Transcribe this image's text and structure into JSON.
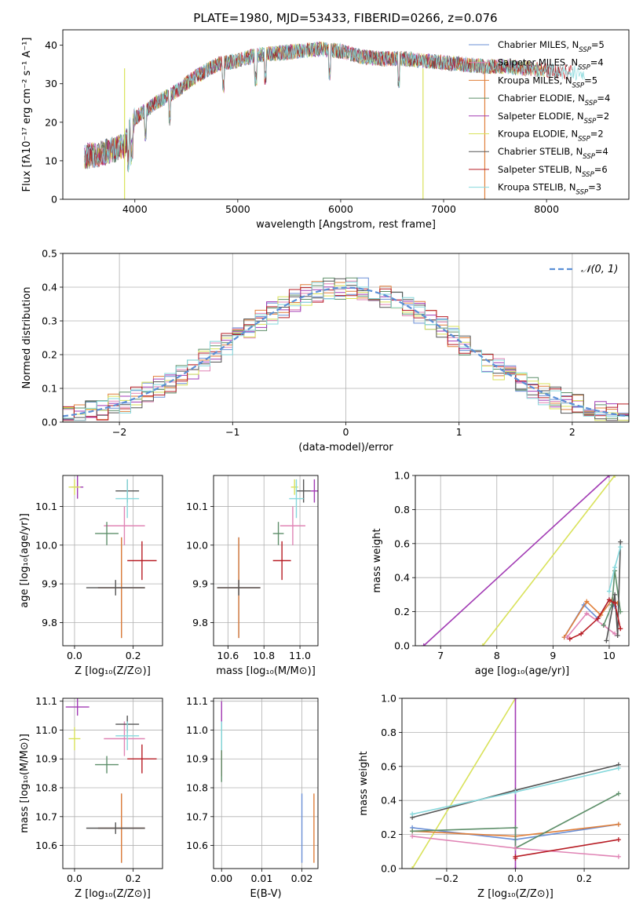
{
  "figure_title": "PLATE=1980, MJD=53433, FIBERID=0266, z=0.076",
  "colors": {
    "c0": "#6a8fd6",
    "c1": "#e07f3a",
    "c2": "#5e8f6a",
    "c3": "#a23bb4",
    "c4": "#d9e25a",
    "c5": "#555555",
    "c6": "#b71c24",
    "c7": "#86d8dc",
    "c8": "#e084b5",
    "normal": "#5b8fd6"
  },
  "chart_data": [
    {
      "id": "spectrum",
      "type": "line",
      "title": "PLATE=1980, MJD=53433, FIBERID=0266, z=0.076",
      "xlabel": "wavelength [Angstrom, rest frame]",
      "ylabel": "Flux [fλ10⁻¹⁷ erg cm⁻² s⁻¹ A⁻¹]",
      "xlim": [
        3300,
        8800
      ],
      "ylim": [
        0,
        44
      ],
      "xticks": [
        "4000",
        "5000",
        "6000",
        "7000",
        "8000"
      ],
      "yticks": [
        "0",
        "10",
        "20",
        "30",
        "40"
      ],
      "legend_position": "top-right",
      "continuum": {
        "x": [
          3500,
          3700,
          3900,
          4000,
          4200,
          4400,
          4600,
          4800,
          5000,
          5200,
          5400,
          5600,
          5800,
          6000,
          6200,
          6400,
          6600,
          6800,
          7000,
          7200,
          7400,
          7600,
          7800,
          8000,
          8200,
          8400
        ],
        "y": [
          11,
          12,
          14,
          21,
          25,
          28,
          32,
          35,
          36,
          37.5,
          38,
          38.5,
          39,
          38.5,
          37,
          36.5,
          36.5,
          36,
          35.5,
          35,
          34.5,
          34.5,
          34,
          33.5,
          33,
          32.5
        ]
      },
      "series": [
        {
          "name": "Chabrier MILES, N_SSP=5",
          "label_main": "Chabrier MILES, N",
          "label_sub": "SSP",
          "label_end": "=5",
          "color": "c0"
        },
        {
          "name": "Salpeter MILES, N_SSP=4",
          "label_main": "Salpeter MILES, N",
          "label_sub": "SSP",
          "label_end": "=4",
          "color": "c8"
        },
        {
          "name": "Kroupa MILES, N_SSP=5",
          "label_main": "Kroupa MILES, N",
          "label_sub": "SSP",
          "label_end": "=5",
          "color": "c1"
        },
        {
          "name": "Chabrier ELODIE, N_SSP=4",
          "label_main": "Chabrier ELODIE, N",
          "label_sub": "SSP",
          "label_end": "=4",
          "color": "c2"
        },
        {
          "name": "Salpeter ELODIE, N_SSP=2",
          "label_main": "Salpeter ELODIE, N",
          "label_sub": "SSP",
          "label_end": "=2",
          "color": "c3"
        },
        {
          "name": "Kroupa ELODIE, N_SSP=2",
          "label_main": "Kroupa ELODIE, N",
          "label_sub": "SSP",
          "label_end": "=2",
          "color": "c4"
        },
        {
          "name": "Chabrier STELIB, N_SSP=4",
          "label_main": "Chabrier STELIB, N",
          "label_sub": "SSP",
          "label_end": "=4",
          "color": "c5"
        },
        {
          "name": "Salpeter STELIB, N_SSP=6",
          "label_main": "Salpeter STELIB, N",
          "label_sub": "SSP",
          "label_end": "=6",
          "color": "c6"
        },
        {
          "name": "Kroupa STELIB, N_SSP=3",
          "label_main": "Kroupa STELIB, N",
          "label_sub": "SSP",
          "label_end": "=3",
          "color": "c7"
        }
      ],
      "vertical_drops": [
        {
          "x": 3900,
          "color": "c4"
        },
        {
          "x": 6800,
          "color": "c4"
        },
        {
          "x": 7400,
          "color": "c1"
        }
      ]
    },
    {
      "id": "residuals",
      "type": "histogram",
      "xlabel": "(data-model)/error",
      "ylabel": "Normed distribution",
      "xlim": [
        -2.5,
        2.5
      ],
      "ylim": [
        0,
        0.5
      ],
      "xticks": [
        "−2",
        "−1",
        "0",
        "1",
        "2"
      ],
      "yticks": [
        "0.0",
        "0.1",
        "0.2",
        "0.3",
        "0.4",
        "0.5"
      ],
      "bin_width": 0.1,
      "legend_position": "top-right",
      "legend_label": "𝒩(0, 1)",
      "normal_mean": 0,
      "normal_sigma": 1
    },
    {
      "id": "age_vs_Z",
      "type": "scatter",
      "xlabel": "Z [log₁₀(Z/Z⊙)]",
      "ylabel": "age  [log₁₀(age/yr)]",
      "xlim": [
        -0.04,
        0.3
      ],
      "ylim": [
        9.74,
        10.18
      ],
      "xticks": [
        "0.0",
        "0.2"
      ],
      "yticks": [
        "9.8",
        "9.9",
        "10.0",
        "10.1"
      ],
      "points": [
        {
          "x": 0.16,
          "y": 9.89,
          "xerr": 0.08,
          "yerr": 0.13,
          "color": "c0"
        },
        {
          "x": 0.16,
          "y": 9.89,
          "xerr": 0.08,
          "yerr": 0.13,
          "color": "c1"
        },
        {
          "x": 0.14,
          "y": 9.89,
          "xerr": 0.1,
          "yerr": 0.02,
          "color": "c5"
        },
        {
          "x": 0.17,
          "y": 10.05,
          "xerr": 0.07,
          "yerr": 0.05,
          "color": "c8"
        },
        {
          "x": 0.11,
          "y": 10.03,
          "xerr": 0.04,
          "yerr": 0.03,
          "color": "c2"
        },
        {
          "x": 0.01,
          "y": 10.15,
          "xerr": 0.02,
          "yerr": 0.03,
          "color": "c3"
        },
        {
          "x": 0.0,
          "y": 10.15,
          "xerr": 0.02,
          "yerr": 0.02,
          "color": "c4"
        },
        {
          "x": 0.18,
          "y": 10.14,
          "xerr": 0.04,
          "yerr": 0.03,
          "color": "c5"
        },
        {
          "x": 0.23,
          "y": 9.96,
          "xerr": 0.05,
          "yerr": 0.05,
          "color": "c6"
        },
        {
          "x": 0.18,
          "y": 10.12,
          "xerr": 0.04,
          "yerr": 0.05,
          "color": "c7"
        }
      ]
    },
    {
      "id": "age_vs_mass",
      "type": "scatter",
      "xlabel": "mass [log₁₀(M/M⊙)]",
      "ylabel": "",
      "xlim": [
        10.52,
        11.1
      ],
      "ylim": [
        9.74,
        10.18
      ],
      "xticks": [
        "10.6",
        "10.8",
        "11.0"
      ],
      "yticks": [
        "9.8",
        "9.9",
        "10.0",
        "10.1"
      ],
      "points": [
        {
          "x": 10.66,
          "y": 9.89,
          "xerr": 0.12,
          "yerr": 0.13,
          "color": "c0"
        },
        {
          "x": 10.66,
          "y": 9.89,
          "xerr": 0.12,
          "yerr": 0.13,
          "color": "c1"
        },
        {
          "x": 10.66,
          "y": 9.89,
          "xerr": 0.12,
          "yerr": 0.02,
          "color": "c5"
        },
        {
          "x": 10.96,
          "y": 10.05,
          "xerr": 0.07,
          "yerr": 0.05,
          "color": "c8"
        },
        {
          "x": 10.88,
          "y": 10.03,
          "xerr": 0.03,
          "yerr": 0.03,
          "color": "c2"
        },
        {
          "x": 11.08,
          "y": 10.14,
          "xerr": 0.02,
          "yerr": 0.03,
          "color": "c3"
        },
        {
          "x": 10.97,
          "y": 10.15,
          "xerr": 0.02,
          "yerr": 0.02,
          "color": "c4"
        },
        {
          "x": 11.02,
          "y": 10.14,
          "xerr": 0.04,
          "yerr": 0.03,
          "color": "c5"
        },
        {
          "x": 10.9,
          "y": 9.96,
          "xerr": 0.05,
          "yerr": 0.05,
          "color": "c6"
        },
        {
          "x": 10.98,
          "y": 10.12,
          "xerr": 0.04,
          "yerr": 0.05,
          "color": "c7"
        }
      ]
    },
    {
      "id": "weight_vs_age",
      "type": "line",
      "xlabel": "age  [log₁₀(age/yr)]",
      "ylabel": "mass weight",
      "xlim": [
        6.55,
        10.35
      ],
      "ylim": [
        0,
        1.0
      ],
      "xticks": [
        "7",
        "8",
        "9",
        "10"
      ],
      "yticks": [
        "0.0",
        "0.2",
        "0.4",
        "0.6",
        "0.8",
        "1.0"
      ],
      "series": [
        {
          "color": "c3",
          "x": [
            6.7,
            10.0
          ],
          "y": [
            0.0,
            1.0
          ]
        },
        {
          "color": "c4",
          "x": [
            7.75,
            10.1
          ],
          "y": [
            0.0,
            1.0
          ]
        },
        {
          "color": "c0",
          "x": [
            9.2,
            9.55,
            9.8,
            10.0,
            10.1
          ],
          "y": [
            0.05,
            0.24,
            0.16,
            0.27,
            0.23
          ]
        },
        {
          "color": "c1",
          "x": [
            9.2,
            9.6,
            9.85,
            10.05,
            10.15
          ],
          "y": [
            0.05,
            0.26,
            0.18,
            0.27,
            0.25
          ]
        },
        {
          "color": "c8",
          "x": [
            9.25,
            9.6,
            9.9,
            10.1
          ],
          "y": [
            0.05,
            0.19,
            0.12,
            0.07
          ]
        },
        {
          "color": "c2",
          "x": [
            9.9,
            10.05,
            10.1,
            10.2
          ],
          "y": [
            0.12,
            0.24,
            0.44,
            0.2
          ]
        },
        {
          "color": "c5",
          "x": [
            9.95,
            10.1,
            10.15,
            10.2
          ],
          "y": [
            0.03,
            0.3,
            0.06,
            0.61
          ]
        },
        {
          "color": "c6",
          "x": [
            9.3,
            9.5,
            9.8,
            10.0,
            10.1,
            10.2
          ],
          "y": [
            0.04,
            0.07,
            0.16,
            0.27,
            0.25,
            0.1
          ]
        },
        {
          "color": "c7",
          "x": [
            10.0,
            10.1,
            10.2
          ],
          "y": [
            0.32,
            0.46,
            0.58
          ]
        }
      ]
    },
    {
      "id": "mass_vs_Z",
      "type": "scatter",
      "xlabel": "Z [log₁₀(Z/Z⊙)]",
      "ylabel": "mass [log₁₀(M/M⊙)]",
      "xlim": [
        -0.04,
        0.3
      ],
      "ylim": [
        10.52,
        11.11
      ],
      "xticks": [
        "0.0",
        "0.2"
      ],
      "yticks": [
        "10.6",
        "10.7",
        "10.8",
        "10.9",
        "11.0",
        "11.1"
      ],
      "points": [
        {
          "x": 0.16,
          "y": 10.66,
          "xerr": 0.08,
          "yerr": 0.12,
          "color": "c0"
        },
        {
          "x": 0.16,
          "y": 10.66,
          "xerr": 0.08,
          "yerr": 0.12,
          "color": "c1"
        },
        {
          "x": 0.14,
          "y": 10.66,
          "xerr": 0.1,
          "yerr": 0.02,
          "color": "c5"
        },
        {
          "x": 0.17,
          "y": 10.97,
          "xerr": 0.07,
          "yerr": 0.06,
          "color": "c8"
        },
        {
          "x": 0.11,
          "y": 10.88,
          "xerr": 0.04,
          "yerr": 0.03,
          "color": "c2"
        },
        {
          "x": 0.01,
          "y": 11.08,
          "xerr": 0.04,
          "yerr": 0.03,
          "color": "c3"
        },
        {
          "x": 0.0,
          "y": 10.97,
          "xerr": 0.02,
          "yerr": 0.04,
          "color": "c4"
        },
        {
          "x": 0.18,
          "y": 11.02,
          "xerr": 0.04,
          "yerr": 0.03,
          "color": "c5"
        },
        {
          "x": 0.23,
          "y": 10.9,
          "xerr": 0.05,
          "yerr": 0.05,
          "color": "c6"
        },
        {
          "x": 0.18,
          "y": 10.98,
          "xerr": 0.04,
          "yerr": 0.05,
          "color": "c7"
        }
      ]
    },
    {
      "id": "mass_vs_ebv",
      "type": "scatter",
      "xlabel": "E(B-V)",
      "ylabel": "",
      "xlim": [
        -0.002,
        0.024
      ],
      "ylim": [
        10.52,
        11.11
      ],
      "xticks": [
        "0.00",
        "0.01",
        "0.02"
      ],
      "yticks": [
        "10.6",
        "10.7",
        "10.8",
        "10.9",
        "11.0",
        "11.1"
      ],
      "points": [
        {
          "x": 0.02,
          "y": 10.66,
          "xerr": 0,
          "yerr": 0.12,
          "color": "c0"
        },
        {
          "x": 0.023,
          "y": 10.66,
          "xerr": 0,
          "yerr": 0.12,
          "color": "c1"
        },
        {
          "x": 0.0,
          "y": 10.97,
          "xerr": 0,
          "yerr": 0.1,
          "color": "c8"
        },
        {
          "x": 0.0,
          "y": 10.9,
          "xerr": 0,
          "yerr": 0.06,
          "color": "c6"
        },
        {
          "x": 0.0,
          "y": 10.92,
          "xerr": 0,
          "yerr": 0.1,
          "color": "c2"
        },
        {
          "x": 0.0,
          "y": 11.06,
          "xerr": 0,
          "yerr": 0.04,
          "color": "c3"
        },
        {
          "x": 0.0,
          "y": 10.98,
          "xerr": 0,
          "yerr": 0.05,
          "color": "c7"
        }
      ]
    },
    {
      "id": "weight_vs_Z",
      "type": "line",
      "xlabel": "Z [log₁₀(Z/Z⊙)]",
      "ylabel": "mass weight",
      "xlim": [
        -0.33,
        0.33
      ],
      "ylim": [
        0,
        1.0
      ],
      "xticks": [
        "−0.2",
        "0.0",
        "0.2"
      ],
      "yticks": [
        "0.0",
        "0.2",
        "0.4",
        "0.6",
        "0.8",
        "1.0"
      ],
      "series": [
        {
          "color": "c4",
          "x": [
            -0.3,
            0.0
          ],
          "y": [
            0.0,
            1.0
          ]
        },
        {
          "color": "c3",
          "x": [
            0.0,
            0.0
          ],
          "y": [
            0.0,
            1.0
          ]
        },
        {
          "color": "c5",
          "x": [
            -0.3,
            0.0,
            0.3
          ],
          "y": [
            0.3,
            0.46,
            0.61
          ]
        },
        {
          "color": "c7",
          "x": [
            -0.3,
            0.0,
            0.3
          ],
          "y": [
            0.32,
            0.45,
            0.59
          ]
        },
        {
          "color": "c0",
          "x": [
            -0.3,
            0.0,
            0.3
          ],
          "y": [
            0.24,
            0.17,
            0.26
          ]
        },
        {
          "color": "c1",
          "x": [
            -0.3,
            0.0,
            0.3
          ],
          "y": [
            0.22,
            0.19,
            0.26
          ]
        },
        {
          "color": "c2",
          "x": [
            -0.3,
            0.0,
            0.0,
            0.3
          ],
          "y": [
            0.22,
            0.24,
            0.12,
            0.44
          ]
        },
        {
          "color": "c8",
          "x": [
            -0.3,
            0.0,
            0.3
          ],
          "y": [
            0.19,
            0.12,
            0.07
          ]
        },
        {
          "color": "c6",
          "x": [
            0.0,
            0.0,
            0.3
          ],
          "y": [
            0.06,
            0.07,
            0.17
          ]
        }
      ]
    }
  ]
}
